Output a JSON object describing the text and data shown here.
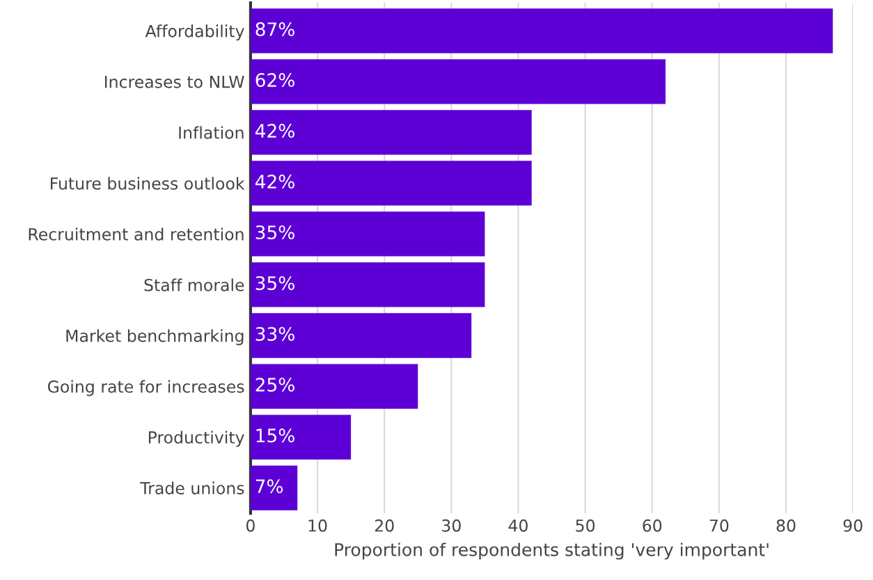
{
  "chart_data": {
    "type": "bar",
    "orientation": "horizontal",
    "xlabel": "Proportion of respondents stating 'very important'",
    "categories": [
      "Affordability",
      "Increases to NLW",
      "Inflation",
      "Future business outlook",
      "Recruitment and retention",
      "Staff morale",
      "Market benchmarking",
      "Going rate for increases",
      "Productivity",
      "Trade unions"
    ],
    "values": [
      87,
      62,
      42,
      42,
      35,
      35,
      33,
      25,
      15,
      7
    ],
    "value_labels": [
      "87%",
      "62%",
      "42%",
      "42%",
      "35%",
      "35%",
      "33%",
      "25%",
      "15%",
      "7%"
    ],
    "color": "#5c00d6",
    "xlim": [
      0,
      90
    ],
    "xticks": [
      0,
      10,
      20,
      30,
      40,
      50,
      60,
      70,
      80,
      90
    ],
    "grid": "x",
    "legend": false
  }
}
